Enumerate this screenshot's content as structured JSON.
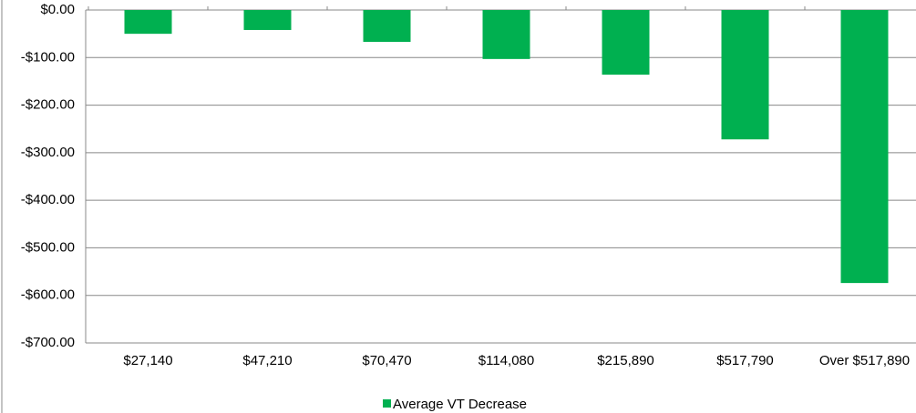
{
  "chart_data": {
    "type": "bar",
    "categories": [
      "$27,140",
      "$47,210",
      "$70,470",
      "$114,080",
      "$215,890",
      "$517,790",
      "Over $517,890"
    ],
    "series": [
      {
        "name": "Average VT Decrease",
        "color": "#00b050",
        "values": [
          -50,
          -42,
          -67,
          -103,
          -136,
          -272,
          -574
        ]
      }
    ],
    "ylim": [
      -700,
      0
    ],
    "yticks": [
      {
        "value": 0,
        "label": "$0.00"
      },
      {
        "value": -100,
        "label": "-$100.00"
      },
      {
        "value": -200,
        "label": "-$200.00"
      },
      {
        "value": -300,
        "label": "-$300.00"
      },
      {
        "value": -400,
        "label": "-$400.00"
      },
      {
        "value": -500,
        "label": "-$500.00"
      },
      {
        "value": -600,
        "label": "-$600.00"
      },
      {
        "value": -700,
        "label": "-$700.00"
      }
    ],
    "grid": true,
    "legend": "bottom"
  }
}
